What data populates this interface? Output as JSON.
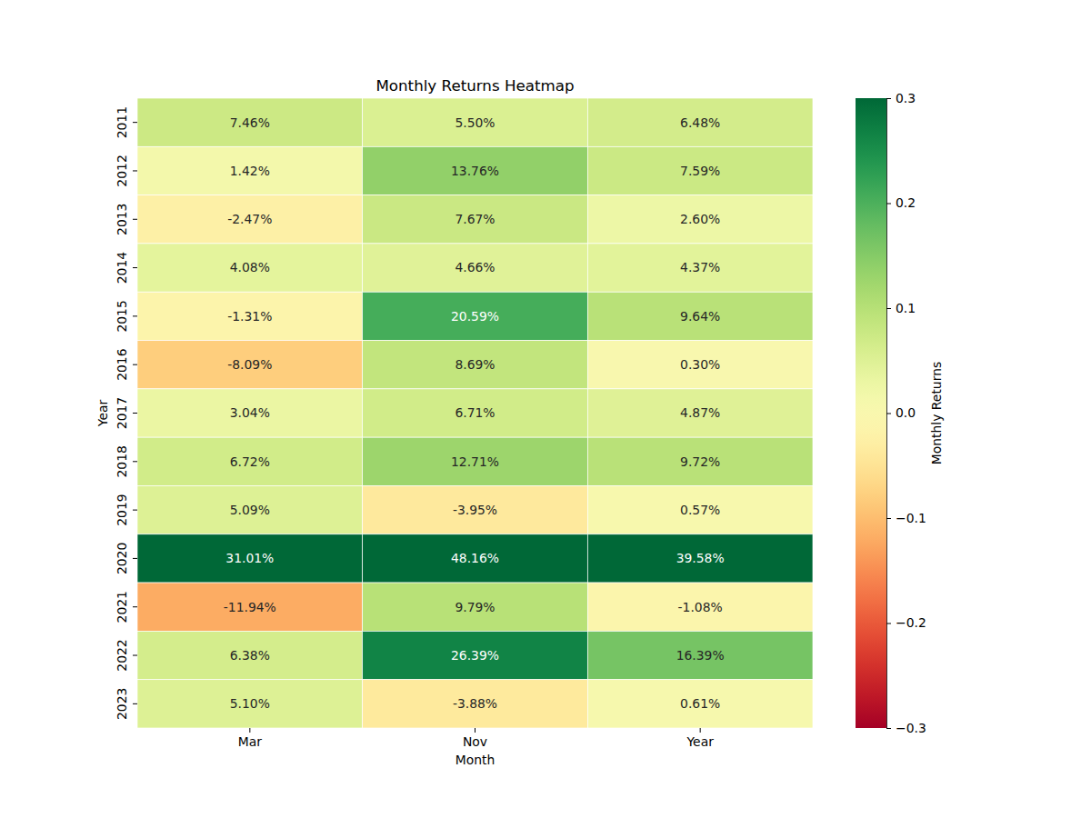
{
  "chart_data": {
    "type": "heatmap",
    "title": "Monthly Returns Heatmap",
    "x_label": "Month",
    "y_label": "Year",
    "x_categories": [
      "Mar",
      "Nov",
      "Year"
    ],
    "y_categories": [
      "2011",
      "2012",
      "2013",
      "2014",
      "2015",
      "2016",
      "2017",
      "2018",
      "2019",
      "2020",
      "2021",
      "2022",
      "2023"
    ],
    "color": "RdYlGn",
    "data_labels": true,
    "values": [
      [
        0.0746,
        0.055,
        0.0648
      ],
      [
        0.0142,
        0.1376,
        0.0759
      ],
      [
        -0.0247,
        0.0767,
        0.026
      ],
      [
        0.0408,
        0.0466,
        0.0437
      ],
      [
        -0.0131,
        0.2059,
        0.0964
      ],
      [
        -0.0809,
        0.0869,
        0.003
      ],
      [
        0.0304,
        0.0671,
        0.0487
      ],
      [
        0.0672,
        0.1271,
        0.0972
      ],
      [
        0.0509,
        -0.0395,
        0.0057
      ],
      [
        0.3101,
        0.4816,
        0.3958
      ],
      [
        -0.1194,
        0.0979,
        -0.0108
      ],
      [
        0.0638,
        0.2639,
        0.1639
      ],
      [
        0.051,
        -0.0388,
        0.0061
      ]
    ],
    "value_labels": [
      [
        "7.46%",
        "5.50%",
        "6.48%"
      ],
      [
        "1.42%",
        "13.76%",
        "7.59%"
      ],
      [
        "-2.47%",
        "7.67%",
        "2.60%"
      ],
      [
        "4.08%",
        "4.66%",
        "4.37%"
      ],
      [
        "-1.31%",
        "20.59%",
        "9.64%"
      ],
      [
        "-8.09%",
        "8.69%",
        "0.30%"
      ],
      [
        "3.04%",
        "6.71%",
        "4.87%"
      ],
      [
        "6.72%",
        "12.71%",
        "9.72%"
      ],
      [
        "5.09%",
        "-3.95%",
        "0.57%"
      ],
      [
        "31.01%",
        "48.16%",
        "39.58%"
      ],
      [
        "-11.94%",
        "9.79%",
        "-1.08%"
      ],
      [
        "6.38%",
        "26.39%",
        "16.39%"
      ],
      [
        "5.10%",
        "-3.88%",
        "0.61%"
      ]
    ],
    "colorbar": {
      "label": "Monthly Returns",
      "lim": [
        -0.3,
        0.3
      ],
      "ticks": [
        {
          "value": -0.3,
          "label": "−0.3"
        },
        {
          "value": -0.2,
          "label": "−0.2"
        },
        {
          "value": -0.1,
          "label": "−0.1"
        },
        {
          "value": 0,
          "label": "0.0"
        },
        0.1,
        0.2,
        0.3
      ]
    }
  }
}
